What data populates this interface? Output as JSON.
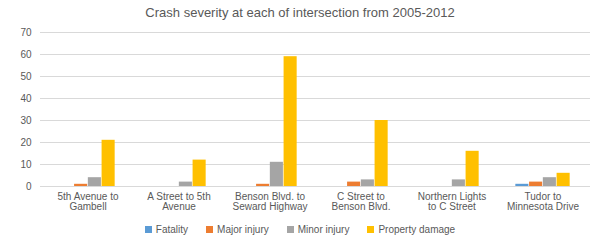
{
  "chart_data": {
    "type": "bar",
    "title": "Crash severity at each of intersection from 2005-2012",
    "categories": [
      "5th Avenue to Gambell",
      "A Street to 5th Avenue",
      "Benson Blvd. to Seward Highway",
      "C Street to Benson Blvd.",
      "Northern Lights to C Street",
      "Tudor to Minnesota Drive"
    ],
    "series": [
      {
        "name": "Fatality",
        "color": "#5b9bd5",
        "values": [
          0,
          0,
          0,
          0,
          0,
          1
        ]
      },
      {
        "name": "Major injury",
        "color": "#ed7d31",
        "values": [
          1,
          0,
          1,
          2,
          0,
          2
        ]
      },
      {
        "name": "Minor injury",
        "color": "#a5a5a5",
        "values": [
          4,
          2,
          11,
          3,
          3,
          4
        ]
      },
      {
        "name": "Property damage",
        "color": "#ffc000",
        "values": [
          21,
          12,
          59,
          30,
          16,
          6
        ]
      }
    ],
    "ylim": [
      0,
      70
    ],
    "yticks": [
      0,
      10,
      20,
      30,
      40,
      50,
      60,
      70
    ],
    "grid": true,
    "legend": "bottom"
  }
}
